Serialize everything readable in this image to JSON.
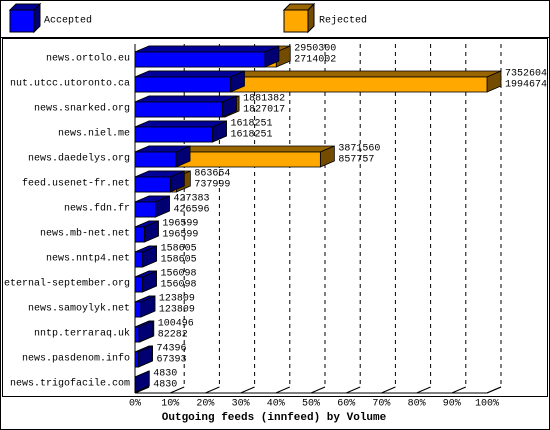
{
  "chart_data": {
    "type": "bar3d",
    "orientation": "horizontal",
    "xlabel": "Outgoing feeds (innfeed) by Volume",
    "categories": [
      "news.ortolo.eu",
      "nut.utcc.utoronto.ca",
      "news.snarked.org",
      "news.niel.me",
      "news.daedelys.org",
      "feed.usenet-fr.net",
      "news.fdn.fr",
      "news.mb-net.net",
      "news.nntp4.net",
      "eternal-september.org",
      "news.samoylyk.net",
      "nntp.terraraq.uk",
      "news.pasdenom.info",
      "news.trigofacile.com"
    ],
    "series": [
      {
        "name": "Rejected",
        "color": "#ffa800",
        "values": [
          2950300,
          7352604,
          1881382,
          1618251,
          3871560,
          863654,
          427383,
          196599,
          158605,
          156098,
          123809,
          100496,
          74396,
          4830
        ]
      },
      {
        "name": "Accepted",
        "color": "#0000ff",
        "values": [
          2714002,
          1994674,
          1827017,
          1618251,
          857757,
          737999,
          426596,
          196599,
          158605,
          156098,
          123809,
          82282,
          67393,
          4830
        ]
      }
    ],
    "legend": [
      "Accepted",
      "Rejected"
    ],
    "xlim": [
      0,
      7352604
    ],
    "xticks": [
      {
        "value": 0,
        "label": "0%"
      },
      {
        "value": 735260.4,
        "label": "10%"
      },
      {
        "value": 1470520.8,
        "label": "20%"
      },
      {
        "value": 2205781.2,
        "label": "30%"
      },
      {
        "value": 2941041.6,
        "label": "40%"
      },
      {
        "value": 3676302,
        "label": "50%"
      },
      {
        "value": 4411562.4,
        "label": "60%"
      },
      {
        "value": 5146822.8,
        "label": "70%"
      },
      {
        "value": 5882083.2,
        "label": "80%"
      },
      {
        "value": 6617343.6,
        "label": "90%"
      },
      {
        "value": 7352604,
        "label": "100%"
      }
    ],
    "grid": true
  }
}
